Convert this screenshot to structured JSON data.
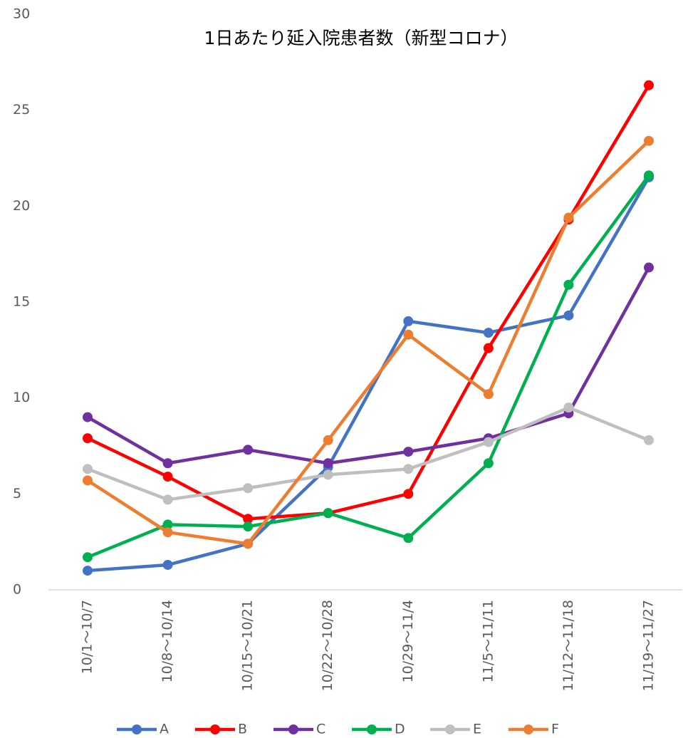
{
  "chart_data": {
    "type": "line",
    "title": "1日あたり延入院患者数（新型コロナ）",
    "categories": [
      "10/1～10/7",
      "10/8～10/14",
      "10/15～10/21",
      "10/22～10/28",
      "10/29～11/4",
      "11/5～11/11",
      "11/12～11/18",
      "11/19～11/27"
    ],
    "series": [
      {
        "name": "A",
        "color": "#4472c4",
        "values": [
          1.0,
          1.3,
          2.4,
          6.4,
          14.0,
          13.4,
          14.3,
          21.5
        ]
      },
      {
        "name": "B",
        "color": "#ff0000",
        "values": [
          7.9,
          5.9,
          3.7,
          4.0,
          5.0,
          12.6,
          19.3,
          26.3
        ]
      },
      {
        "name": "C",
        "color": "#7030a0",
        "values": [
          9.0,
          6.6,
          7.3,
          6.6,
          7.2,
          7.9,
          9.2,
          16.8
        ]
      },
      {
        "name": "D",
        "color": "#00b050",
        "values": [
          1.7,
          3.4,
          3.3,
          4.0,
          2.7,
          6.6,
          15.9,
          21.6
        ]
      },
      {
        "name": "E",
        "color": "#bfbfbf",
        "values": [
          6.3,
          4.7,
          5.3,
          6.0,
          6.3,
          7.7,
          9.5,
          7.8
        ]
      },
      {
        "name": "F",
        "color": "#ed7d31",
        "values": [
          5.7,
          3.0,
          2.4,
          7.8,
          13.3,
          10.2,
          19.4,
          23.4
        ]
      }
    ],
    "ylim": [
      0,
      30
    ],
    "yticks": [
      0,
      5,
      10,
      15,
      20,
      25,
      30
    ],
    "grid": false,
    "legend": "bottom"
  }
}
